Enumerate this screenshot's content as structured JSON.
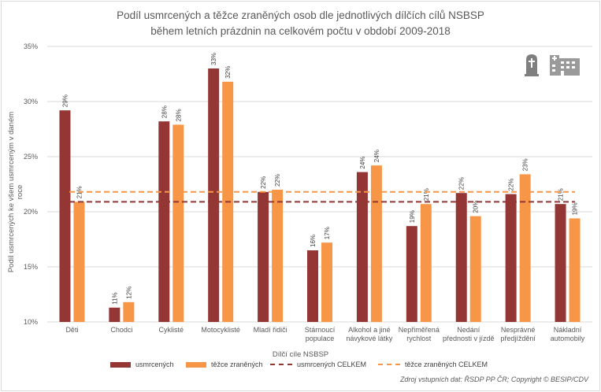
{
  "chart_data": {
    "type": "bar",
    "title_line1": "Podíl usmrcených a těžce zraněných osob dle jednotlivých dílčích cílů NSBSP",
    "title_line2": "během letních prázdnin na celkovém počtu v období 2009-2018",
    "ylabel": "Podíl usmrcených ke všem usmrceným v daném roce",
    "xlabel": "Dílčí cíle NSBSP",
    "ylim": [
      10,
      35
    ],
    "yticks": [
      "10%",
      "15%",
      "20%",
      "25%",
      "30%",
      "35%"
    ],
    "yticks_values": [
      10,
      15,
      20,
      25,
      30,
      35
    ],
    "categories": [
      [
        "Děti"
      ],
      [
        "Chodci"
      ],
      [
        "Cyklisté"
      ],
      [
        "Motocyklisté"
      ],
      [
        "Mladí řidiči"
      ],
      [
        "Stárnoucí",
        "populace"
      ],
      [
        "Alkohol a jiné",
        "návykové látky"
      ],
      [
        "Nepřiměřená",
        "rychlost"
      ],
      [
        "Nedání",
        "přednosti v jízdě"
      ],
      [
        "Nesprávné",
        "předjíždění"
      ],
      [
        "Nákladní",
        "automobily"
      ]
    ],
    "series": [
      {
        "name": "usmrcených",
        "color": "#943634",
        "values": [
          29.2,
          11.3,
          28.2,
          33.0,
          21.8,
          16.5,
          23.6,
          18.7,
          21.7,
          21.6,
          20.7
        ],
        "labels": [
          "29%",
          "11%",
          "28%",
          "33%",
          "22%",
          "16%",
          "24%",
          "19%",
          "22%",
          "22%",
          "21%"
        ]
      },
      {
        "name": "těžce zraněných",
        "color": "#f79646",
        "values": [
          20.9,
          11.8,
          27.9,
          31.8,
          22.0,
          17.2,
          24.2,
          20.7,
          19.6,
          23.4,
          19.4
        ],
        "labels": [
          "21%",
          "12%",
          "28%",
          "32%",
          "22%",
          "17%",
          "24%",
          "21%",
          "20%",
          "23%",
          "19%"
        ]
      }
    ],
    "reference_lines": [
      {
        "name": "usmrcených CELKEM",
        "color": "#943634",
        "value": 20.9
      },
      {
        "name": "těžce zraněných CELKEM",
        "color": "#f79646",
        "value": 21.8
      }
    ],
    "source": "Zdroj vstupních dat: ŘSDP PP ČR; Copyright © BESIP/CDV"
  },
  "icons": [
    "tombstone-icon",
    "hospital-icon"
  ]
}
